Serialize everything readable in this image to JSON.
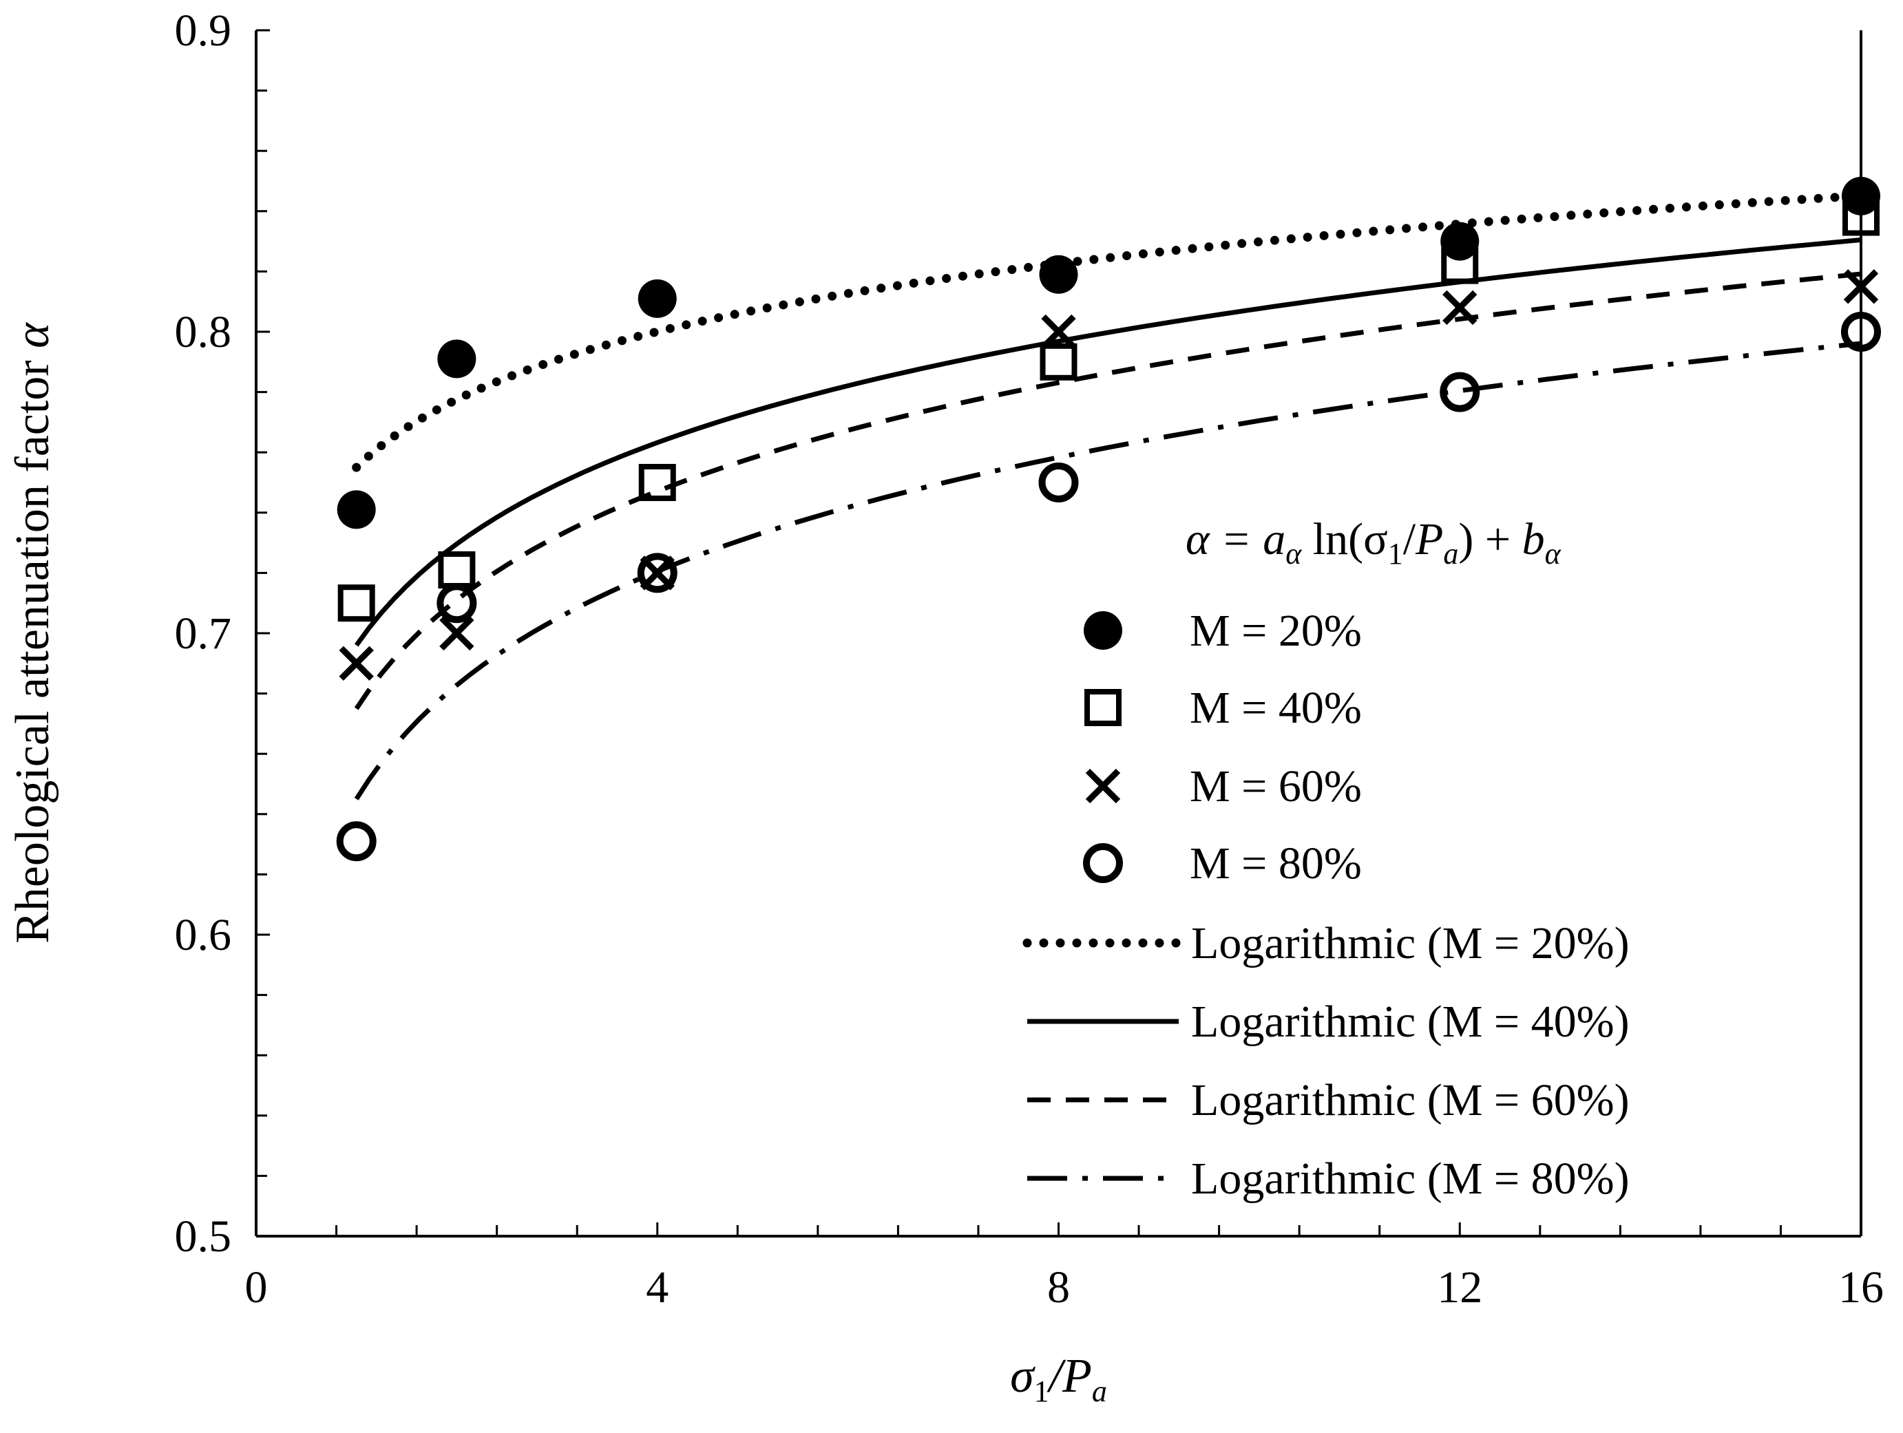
{
  "chart_data": {
    "type": "scatter",
    "title": "",
    "xlabel": {
      "main": "σ",
      "sub1": "1",
      "mid": "/P",
      "sub2": "a"
    },
    "ylabel": {
      "main": "Rheological attenuation factor ",
      "symbol": "α"
    },
    "xlim": [
      0,
      16
    ],
    "ylim": [
      0.5,
      0.9
    ],
    "x_ticks": [
      0,
      4,
      8,
      12,
      16
    ],
    "y_ticks": [
      0.5,
      0.6,
      0.7,
      0.8,
      0.9
    ],
    "x_tick_labels": [
      "0",
      "4",
      "8",
      "12",
      "16"
    ],
    "y_tick_labels": [
      "0.5",
      "0.6",
      "0.7",
      "0.8",
      "0.9"
    ],
    "x_minor_step": 0.8,
    "y_minor_step": 0.02,
    "grid": false,
    "legend_position": "center-right",
    "formula": {
      "lhs": "α = ",
      "a": "a",
      "a_sub": "α",
      "mid1": " ln(σ",
      "mid1_sub": "1",
      "mid2": "/",
      "p": "P",
      "p_sub": "a",
      "mid3": ") + ",
      "b": "b",
      "b_sub": "α"
    },
    "series": [
      {
        "name": "M = 20%",
        "marker": "filled-circle",
        "x": [
          1,
          2,
          4,
          8,
          12,
          16
        ],
        "y": [
          0.741,
          0.791,
          0.811,
          0.819,
          0.83,
          0.845
        ]
      },
      {
        "name": "M = 40%",
        "marker": "open-square",
        "x": [
          1,
          2,
          4,
          8,
          12,
          16
        ],
        "y": [
          0.71,
          0.721,
          0.75,
          0.79,
          0.822,
          0.838
        ]
      },
      {
        "name": "M = 60%",
        "marker": "cross",
        "x": [
          1,
          2,
          4,
          8,
          12,
          16
        ],
        "y": [
          0.69,
          0.7,
          0.72,
          0.8,
          0.808,
          0.815
        ]
      },
      {
        "name": "M = 80%",
        "marker": "open-circle",
        "x": [
          1,
          2,
          4,
          8,
          12,
          16
        ],
        "y": [
          0.631,
          0.71,
          0.72,
          0.75,
          0.78,
          0.8
        ]
      }
    ],
    "trendlines": [
      {
        "name": "Logarithmic (M = 20%)",
        "style": "dotted",
        "a": 0.0325,
        "b": 0.755
      },
      {
        "name": "Logarithmic (M = 40%)",
        "style": "solid",
        "a": 0.0485,
        "b": 0.696
      },
      {
        "name": "Logarithmic (M = 60%)",
        "style": "dashed",
        "a": 0.052,
        "b": 0.675
      },
      {
        "name": "Logarithmic (M = 80%)",
        "style": "dash-dot",
        "a": 0.0545,
        "b": 0.645
      }
    ]
  },
  "colors": {
    "ink": "#000000",
    "background": "#ffffff"
  }
}
